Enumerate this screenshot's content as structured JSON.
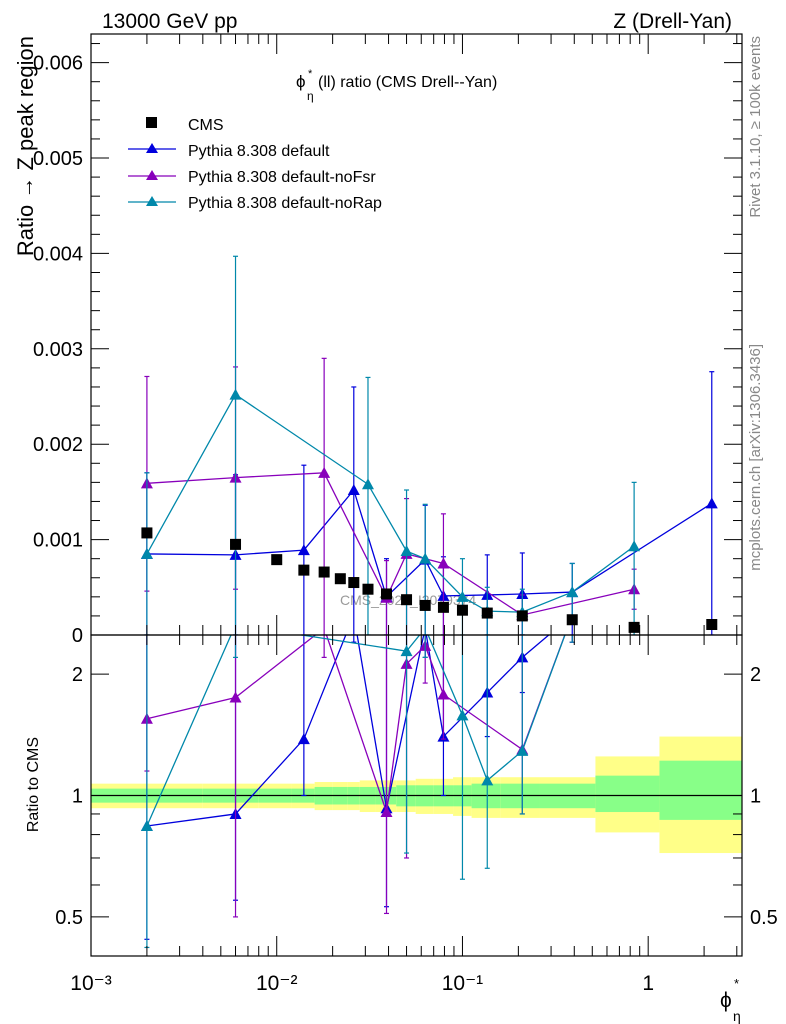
{
  "header": {
    "energy_label": "13000 GeV pp",
    "process_label": "Z (Drell-Yan)",
    "plot_title": "ϕ*η(ll) ratio (CMS Drell--Yan)",
    "watermark": "CMS_2022_I2079374",
    "side_label_top": "Rivet 3.1.10, ≥ 100k events",
    "side_label_bottom": "mcplots.cern.ch [arXiv:1306.3436]"
  },
  "legend": {
    "cms": "CMS",
    "default": "Pythia 8.308 default",
    "nofsr": "Pythia 8.308 default-noFsr",
    "norap": "Pythia 8.308 default-noRap"
  },
  "colors": {
    "cms": "#000000",
    "default": "#0000dd",
    "nofsr": "#8800bb",
    "norap": "#0088aa",
    "band_outer": "#ffff88",
    "band_inner": "#88ff88"
  },
  "chart_data": [
    {
      "type": "scatter",
      "title": "ϕ*η(ll) ratio (CMS Drell--Yan)",
      "ylabel": "Ratio → Z peak region",
      "xscale": "log",
      "xlim": [
        0.001,
        3.2
      ],
      "ylim": [
        0,
        0.0063
      ],
      "y_ticks": [
        "0",
        "0.001",
        "0.002",
        "0.003",
        "0.004",
        "0.005",
        "0.006"
      ],
      "x": [
        0.002,
        0.006,
        0.01,
        0.014,
        0.018,
        0.022,
        0.026,
        0.031,
        0.039,
        0.05,
        0.063,
        0.079,
        0.1,
        0.136,
        0.21,
        0.39,
        0.84,
        2.2
      ],
      "series": [
        {
          "name": "CMS",
          "y": [
            0.00107,
            0.00095,
            0.00079,
            0.00068,
            0.00066,
            0.00059,
            0.00055,
            0.00048,
            0.00043,
            0.00037,
            0.00031,
            0.00029,
            0.00026,
            0.00023,
            0.0002,
            0.00016,
            8e-05,
            0.00011
          ]
        },
        {
          "name": "Pythia 8.308 default",
          "x": [
            0.002,
            0.006,
            0.014,
            0.026,
            0.039,
            0.063,
            0.079,
            0.136,
            0.21,
            0.39,
            2.2
          ],
          "y": [
            0.00085,
            0.00084,
            0.00089,
            0.00152,
            0.0004,
            0.00079,
            0.00041,
            0.00042,
            0.00043,
            0.00045,
            0.00138
          ],
          "err_lo": [
            0.00085,
            0.00084,
            0.00089,
            0.00152,
            0.0004,
            0.00079,
            0.00041,
            0.00042,
            0.00043,
            0.00045,
            0.00138
          ],
          "err_hi": [
            0.00085,
            0.00084,
            0.00089,
            0.00108,
            0.0004,
            0.00057,
            0.00041,
            0.00042,
            0.00043,
            0.0003,
            0.00138
          ]
        },
        {
          "name": "Pythia 8.308 default-noFsr",
          "x": [
            0.002,
            0.006,
            0.018,
            0.039,
            0.05,
            0.079,
            0.21,
            0.84
          ],
          "y": [
            0.00159,
            0.00165,
            0.0017,
            0.00039,
            0.00085,
            0.00075,
            0.00021,
            0.00048
          ],
          "err_lo": [
            0.00113,
            0.00117,
            0.0017,
            0.00039,
            0.00085,
            0.00075,
            0.00021,
            0.00021
          ],
          "err_hi": [
            0.00112,
            0.00116,
            0.0012,
            0.00039,
            0.00058,
            0.00052,
            0.00021,
            0.00021
          ]
        },
        {
          "name": "Pythia 8.308 default-noRap",
          "x": [
            0.002,
            0.006,
            0.031,
            0.05,
            0.063,
            0.1,
            0.136,
            0.21,
            0.39,
            0.84
          ],
          "y": [
            0.00085,
            0.00252,
            0.00158,
            0.00088,
            0.0008,
            0.0004,
            0.00025,
            0.00024,
            0.00045,
            0.00093
          ],
          "err_lo": [
            0.00085,
            0.00252,
            0.00158,
            0.00088,
            0.0008,
            0.0004,
            0.00025,
            0.00024,
            0.0003,
            0.00093
          ],
          "err_hi": [
            0.00085,
            0.00145,
            0.00112,
            0.00064,
            0.00057,
            0.0004,
            0.00025,
            0.00024,
            0.0003,
            0.00067
          ]
        }
      ]
    },
    {
      "type": "line",
      "ylabel": "Ratio to CMS",
      "xlabel": "ϕ*η",
      "xscale": "log",
      "yscale": "log",
      "xlim": [
        0.001,
        3.2
      ],
      "ylim": [
        0.4,
        2.5
      ],
      "y_ticks": [
        "0.5",
        "1",
        "2"
      ],
      "x_ticks": [
        "10⁻³",
        "10⁻²",
        "10⁻¹",
        "1"
      ],
      "bands": {
        "x_edges": [
          0.001,
          0.004,
          0.008,
          0.012,
          0.016,
          0.02,
          0.024,
          0.028,
          0.034,
          0.044,
          0.056,
          0.07,
          0.089,
          0.112,
          0.16,
          0.26,
          0.52,
          1.15,
          3.2
        ],
        "outer_lo": [
          0.93,
          0.93,
          0.93,
          0.93,
          0.92,
          0.92,
          0.92,
          0.91,
          0.91,
          0.91,
          0.9,
          0.9,
          0.89,
          0.88,
          0.88,
          0.88,
          0.81,
          0.72
        ],
        "outer_hi": [
          1.07,
          1.07,
          1.07,
          1.07,
          1.08,
          1.08,
          1.08,
          1.09,
          1.09,
          1.09,
          1.1,
          1.1,
          1.11,
          1.11,
          1.11,
          1.11,
          1.25,
          1.4
        ],
        "inner_lo": [
          0.96,
          0.96,
          0.96,
          0.96,
          0.95,
          0.95,
          0.95,
          0.95,
          0.95,
          0.94,
          0.94,
          0.94,
          0.94,
          0.93,
          0.93,
          0.93,
          0.91,
          0.87
        ],
        "inner_hi": [
          1.04,
          1.04,
          1.04,
          1.04,
          1.05,
          1.05,
          1.05,
          1.05,
          1.05,
          1.06,
          1.06,
          1.06,
          1.06,
          1.07,
          1.07,
          1.07,
          1.12,
          1.22
        ]
      },
      "series": [
        {
          "name": "Pythia 8.308 default",
          "x": [
            0.002,
            0.006,
            0.014,
            0.026,
            0.039,
            0.063,
            0.079,
            0.136,
            0.21,
            0.39
          ],
          "y": [
            0.84,
            0.9,
            1.38,
            2.8,
            0.93,
            2.6,
            1.4,
            1.8,
            2.2,
            2.8
          ],
          "err_lo": [
            0.44,
            0.55,
            1.0,
            2.4,
            0.53,
            2.2,
            1.0,
            1.4,
            1.8,
            2.4
          ],
          "err_hi": [
            3.0,
            3.0,
            3.0,
            3.0,
            3.0,
            3.0,
            3.0,
            3.0,
            3.0,
            3.0
          ]
        },
        {
          "name": "Pythia 8.308 default-noFsr",
          "x": [
            0.002,
            0.006,
            0.018,
            0.039,
            0.05,
            0.063,
            0.079,
            0.21,
            0.39
          ],
          "y": [
            1.55,
            1.75,
            2.6,
            0.91,
            2.12,
            2.35,
            1.78,
            1.3,
            2.8
          ],
          "err_lo": [
            1.15,
            0.5,
            2.2,
            0.51,
            0.7,
            1.9,
            1.38,
            0.9,
            2.4
          ],
          "err_hi": [
            3.0,
            3.0,
            3.0,
            3.0,
            3.0,
            3.0,
            3.0,
            3.0,
            3.0
          ]
        },
        {
          "name": "Pythia 8.308 default-noRap",
          "x": [
            0.002,
            0.006,
            0.05,
            0.063,
            0.1,
            0.136,
            0.21,
            0.39
          ],
          "y": [
            0.84,
            2.65,
            2.28,
            2.6,
            1.58,
            1.09,
            1.29,
            2.8
          ],
          "err_lo": [
            0.42,
            2.2,
            0.72,
            2.2,
            0.62,
            0.66,
            0.9,
            2.4
          ],
          "err_hi": [
            3.0,
            3.0,
            3.0,
            3.0,
            3.0,
            3.0,
            3.0,
            3.0
          ]
        }
      ]
    }
  ]
}
